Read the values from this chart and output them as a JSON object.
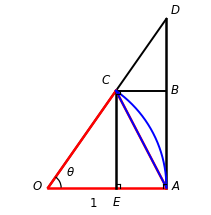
{
  "theta_deg": 55,
  "bg_color": "#ffffff",
  "line_color_black": "#000000",
  "line_color_red": "#ff0000",
  "line_color_blue": "#0000ff",
  "label_O": "O",
  "label_A": "A",
  "label_B": "B",
  "label_C": "C",
  "label_D": "D",
  "label_E": "E",
  "label_theta": "θ",
  "label_1": "1",
  "figsize": [
    2.11,
    2.15
  ],
  "dpi": 100,
  "xlim": [
    -0.25,
    1.22
  ],
  "ylim": [
    -0.18,
    1.52
  ]
}
